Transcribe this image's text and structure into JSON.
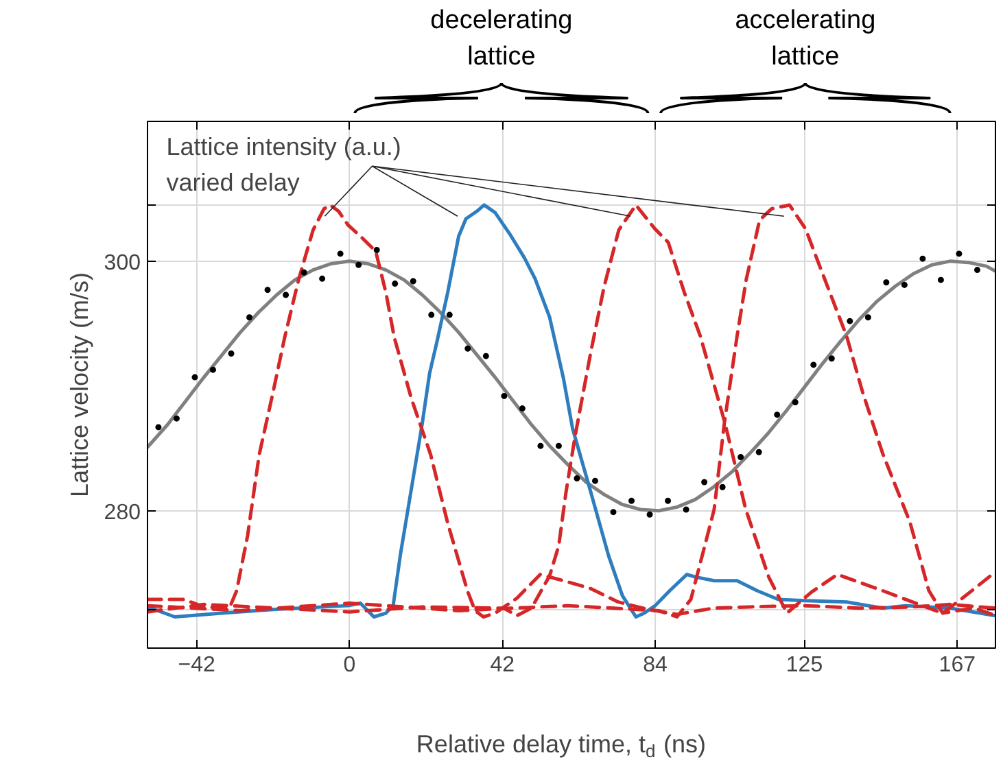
{
  "chart_data": {
    "type": "line",
    "xlabel": "Relative delay time, t$_{d}$ (ns)",
    "ylabel": "Lattice velocity (m/s)",
    "xlim": [
      -55.5,
      177.5
    ],
    "ylim": [
      269,
      311.2
    ],
    "xticks": [
      -42,
      0,
      42,
      84,
      125,
      167
    ],
    "yticks": [
      {
        "value": 272.1,
        "label": null
      },
      280,
      300,
      {
        "value": 304.5,
        "label": null
      }
    ],
    "grid": true,
    "annotations": [
      {
        "text": "Lattice intensity (a.u.)\nvaried delay",
        "x": 29.7,
        "y": 303.6
      },
      "decelerating\nlattice",
      "accelerating\nlattice"
    ],
    "series": [
      {
        "type": "scatter",
        "marker": "circle",
        "color": "#000000",
        "x": [
          -52.5,
          -47.5,
          -42.5,
          -37.5,
          -32.5,
          -27.5,
          -22.5,
          -17.5,
          -12.5,
          -7.5,
          -2.5,
          2.5,
          7.5,
          12.5,
          17.5,
          22.5,
          27.5,
          32.5,
          37.5,
          42.5,
          47.5,
          52.5,
          57.5,
          62.5,
          67.5,
          72.5,
          77.5,
          82.5,
          87.5,
          92.5,
          97.5,
          102.5,
          107.5,
          112.5,
          117.5,
          122.5,
          127.5,
          132.5,
          137.5,
          142.5,
          147.5,
          152.5,
          157.5,
          162.5,
          167.5,
          172.5
        ],
        "values": [
          286.7,
          287.4,
          290.7,
          291.3,
          292.6,
          295.5,
          297.7,
          297.3,
          299.1,
          298.6,
          300.6,
          299.7,
          300.9,
          298.2,
          298.4,
          295.7,
          295.7,
          293.0,
          292.4,
          289.2,
          288.2,
          285.2,
          285.2,
          282.6,
          282.4,
          279.9,
          280.8,
          279.7,
          280.8,
          280.1,
          282.3,
          281.9,
          284.3,
          284.7,
          287.7,
          288.7,
          291.7,
          292.2,
          295.2,
          295.5,
          298.3,
          298.1,
          300.2,
          298.5,
          300.6,
          299.3
        ]
      },
      {
        "color": "#808080",
        "line_style": "solid",
        "x": [
          -55.5,
          -50,
          -45,
          -40,
          -35,
          -30,
          -25,
          -20,
          -15,
          -10,
          -5,
          0,
          5,
          10,
          15,
          20,
          25,
          30,
          35,
          40,
          45,
          50,
          55,
          60,
          65,
          70,
          75,
          80,
          85,
          90,
          95,
          100,
          105,
          110,
          115,
          120,
          125,
          130,
          135,
          140,
          145,
          150,
          155,
          160,
          165,
          170,
          175,
          177.5
        ],
        "values": [
          285.1,
          286.9,
          288.8,
          290.7,
          292.5,
          294.3,
          295.9,
          297.3,
          298.5,
          299.3,
          299.8,
          300,
          299.8,
          299.3,
          298.5,
          297.3,
          295.9,
          294.3,
          292.5,
          290.7,
          288.8,
          286.9,
          285.2,
          283.7,
          282.3,
          281.3,
          280.5,
          280.1,
          280.0,
          280.3,
          280.9,
          281.9,
          283.1,
          284.6,
          286.2,
          288.0,
          289.9,
          291.8,
          293.6,
          295.3,
          296.8,
          298.0,
          299.0,
          299.7,
          300.0,
          299.9,
          299.6,
          299.2
        ]
      },
      {
        "color": "#2e7ebf",
        "line_style": "solid",
        "x": [
          -55.5,
          -48,
          -35,
          -20.3,
          -0.4,
          3,
          6.7,
          10,
          12,
          14,
          16,
          18,
          20,
          22,
          24,
          27,
          30,
          32,
          35,
          37,
          40,
          44,
          48,
          51,
          55,
          58.8,
          61.3,
          66.3,
          71.2,
          75,
          78.7,
          81,
          84,
          88,
          92.7,
          95,
          100.2,
          106.5,
          112,
          117.8,
          125,
          136.6,
          146.5,
          152.8,
          165,
          177.5
        ],
        "values": [
          272.3,
          271.5,
          271.8,
          272.1,
          272.4,
          272.6,
          271.5,
          271.8,
          272.4,
          276.5,
          280,
          283.5,
          287,
          291,
          293.5,
          297.5,
          302,
          303.4,
          304.0,
          304.5,
          303.9,
          302.2,
          300.3,
          298.6,
          295.5,
          290.6,
          286.6,
          281.5,
          276.4,
          273.2,
          271.5,
          271.8,
          272.4,
          273.6,
          274.9,
          274.7,
          274.4,
          274.4,
          273.6,
          272.9,
          272.8,
          272.7,
          272.2,
          272.4,
          272.2,
          271.6
        ]
      },
      {
        "color": "#d62728",
        "line_style": "dashed",
        "x": [
          -55.5,
          -45.5,
          -40,
          -33,
          -31,
          -28,
          -24.8,
          -21,
          -17.8,
          -14,
          -10,
          -7,
          -5.3,
          -3,
          -0.4,
          3,
          7.2,
          10,
          12.3,
          17,
          22.3,
          27,
          32.4,
          34.5,
          36.8,
          40,
          46,
          52.4,
          58.8,
          66,
          73.8,
          82,
          90,
          100,
          110,
          125,
          140,
          155,
          165,
          177.5
        ],
        "values": [
          272.9,
          272.9,
          272.3,
          272.2,
          273.6,
          278,
          284.5,
          289.5,
          293.9,
          298.5,
          302.5,
          304.2,
          304.5,
          304,
          302.9,
          302,
          300.8,
          297.5,
          293.9,
          289,
          284.5,
          279,
          273.6,
          272,
          271.5,
          271.8,
          273,
          274.9,
          274.4,
          273.8,
          272.7,
          272.1,
          271.7,
          272.2,
          272.3,
          272.4,
          272.2,
          272.3,
          272.5,
          272.2
        ]
      },
      {
        "color": "#d62728",
        "line_style": "dashed",
        "x": [
          -55.5,
          -40,
          -20,
          0,
          20,
          42.4,
          46,
          50,
          55,
          57.5,
          59.5,
          62,
          66.3,
          70,
          74,
          78.7,
          83.9,
          87.6,
          92,
          96.4,
          103.2,
          108.9,
          115.2,
          120.2,
          127,
          134.1,
          146.5,
          159.2,
          163,
          168,
          176.6
        ],
        "values": [
          271.9,
          272.5,
          272.2,
          271.9,
          272.3,
          272.2,
          271.6,
          272.2,
          274.8,
          277.2,
          281.5,
          286,
          292.7,
          298,
          302.5,
          304.5,
          302.6,
          301.5,
          297.5,
          294.0,
          287,
          280.1,
          274.7,
          271.8,
          273.5,
          274.9,
          273.6,
          272.2,
          271.8,
          272.9,
          274.9
        ]
      },
      {
        "color": "#d62728",
        "line_style": "dashed",
        "x": [
          -55.5,
          -30,
          0,
          30,
          60,
          85,
          90,
          93.8,
          97,
          100.2,
          103,
          106.5,
          109,
          112.7,
          116,
          120.9,
          125.3,
          130,
          136.6,
          141,
          146.5,
          154,
          159.2,
          163,
          167,
          171.7,
          176.6
        ],
        "values": [
          272.4,
          272.0,
          272.6,
          272.0,
          272.4,
          272.0,
          271.5,
          272.9,
          276.5,
          280.1,
          287,
          294.0,
          298.5,
          303.3,
          304.2,
          304.5,
          302.6,
          299,
          294,
          289.5,
          284.6,
          279.1,
          273.6,
          271.8,
          272.0,
          272.2,
          271.7
        ]
      }
    ]
  }
}
